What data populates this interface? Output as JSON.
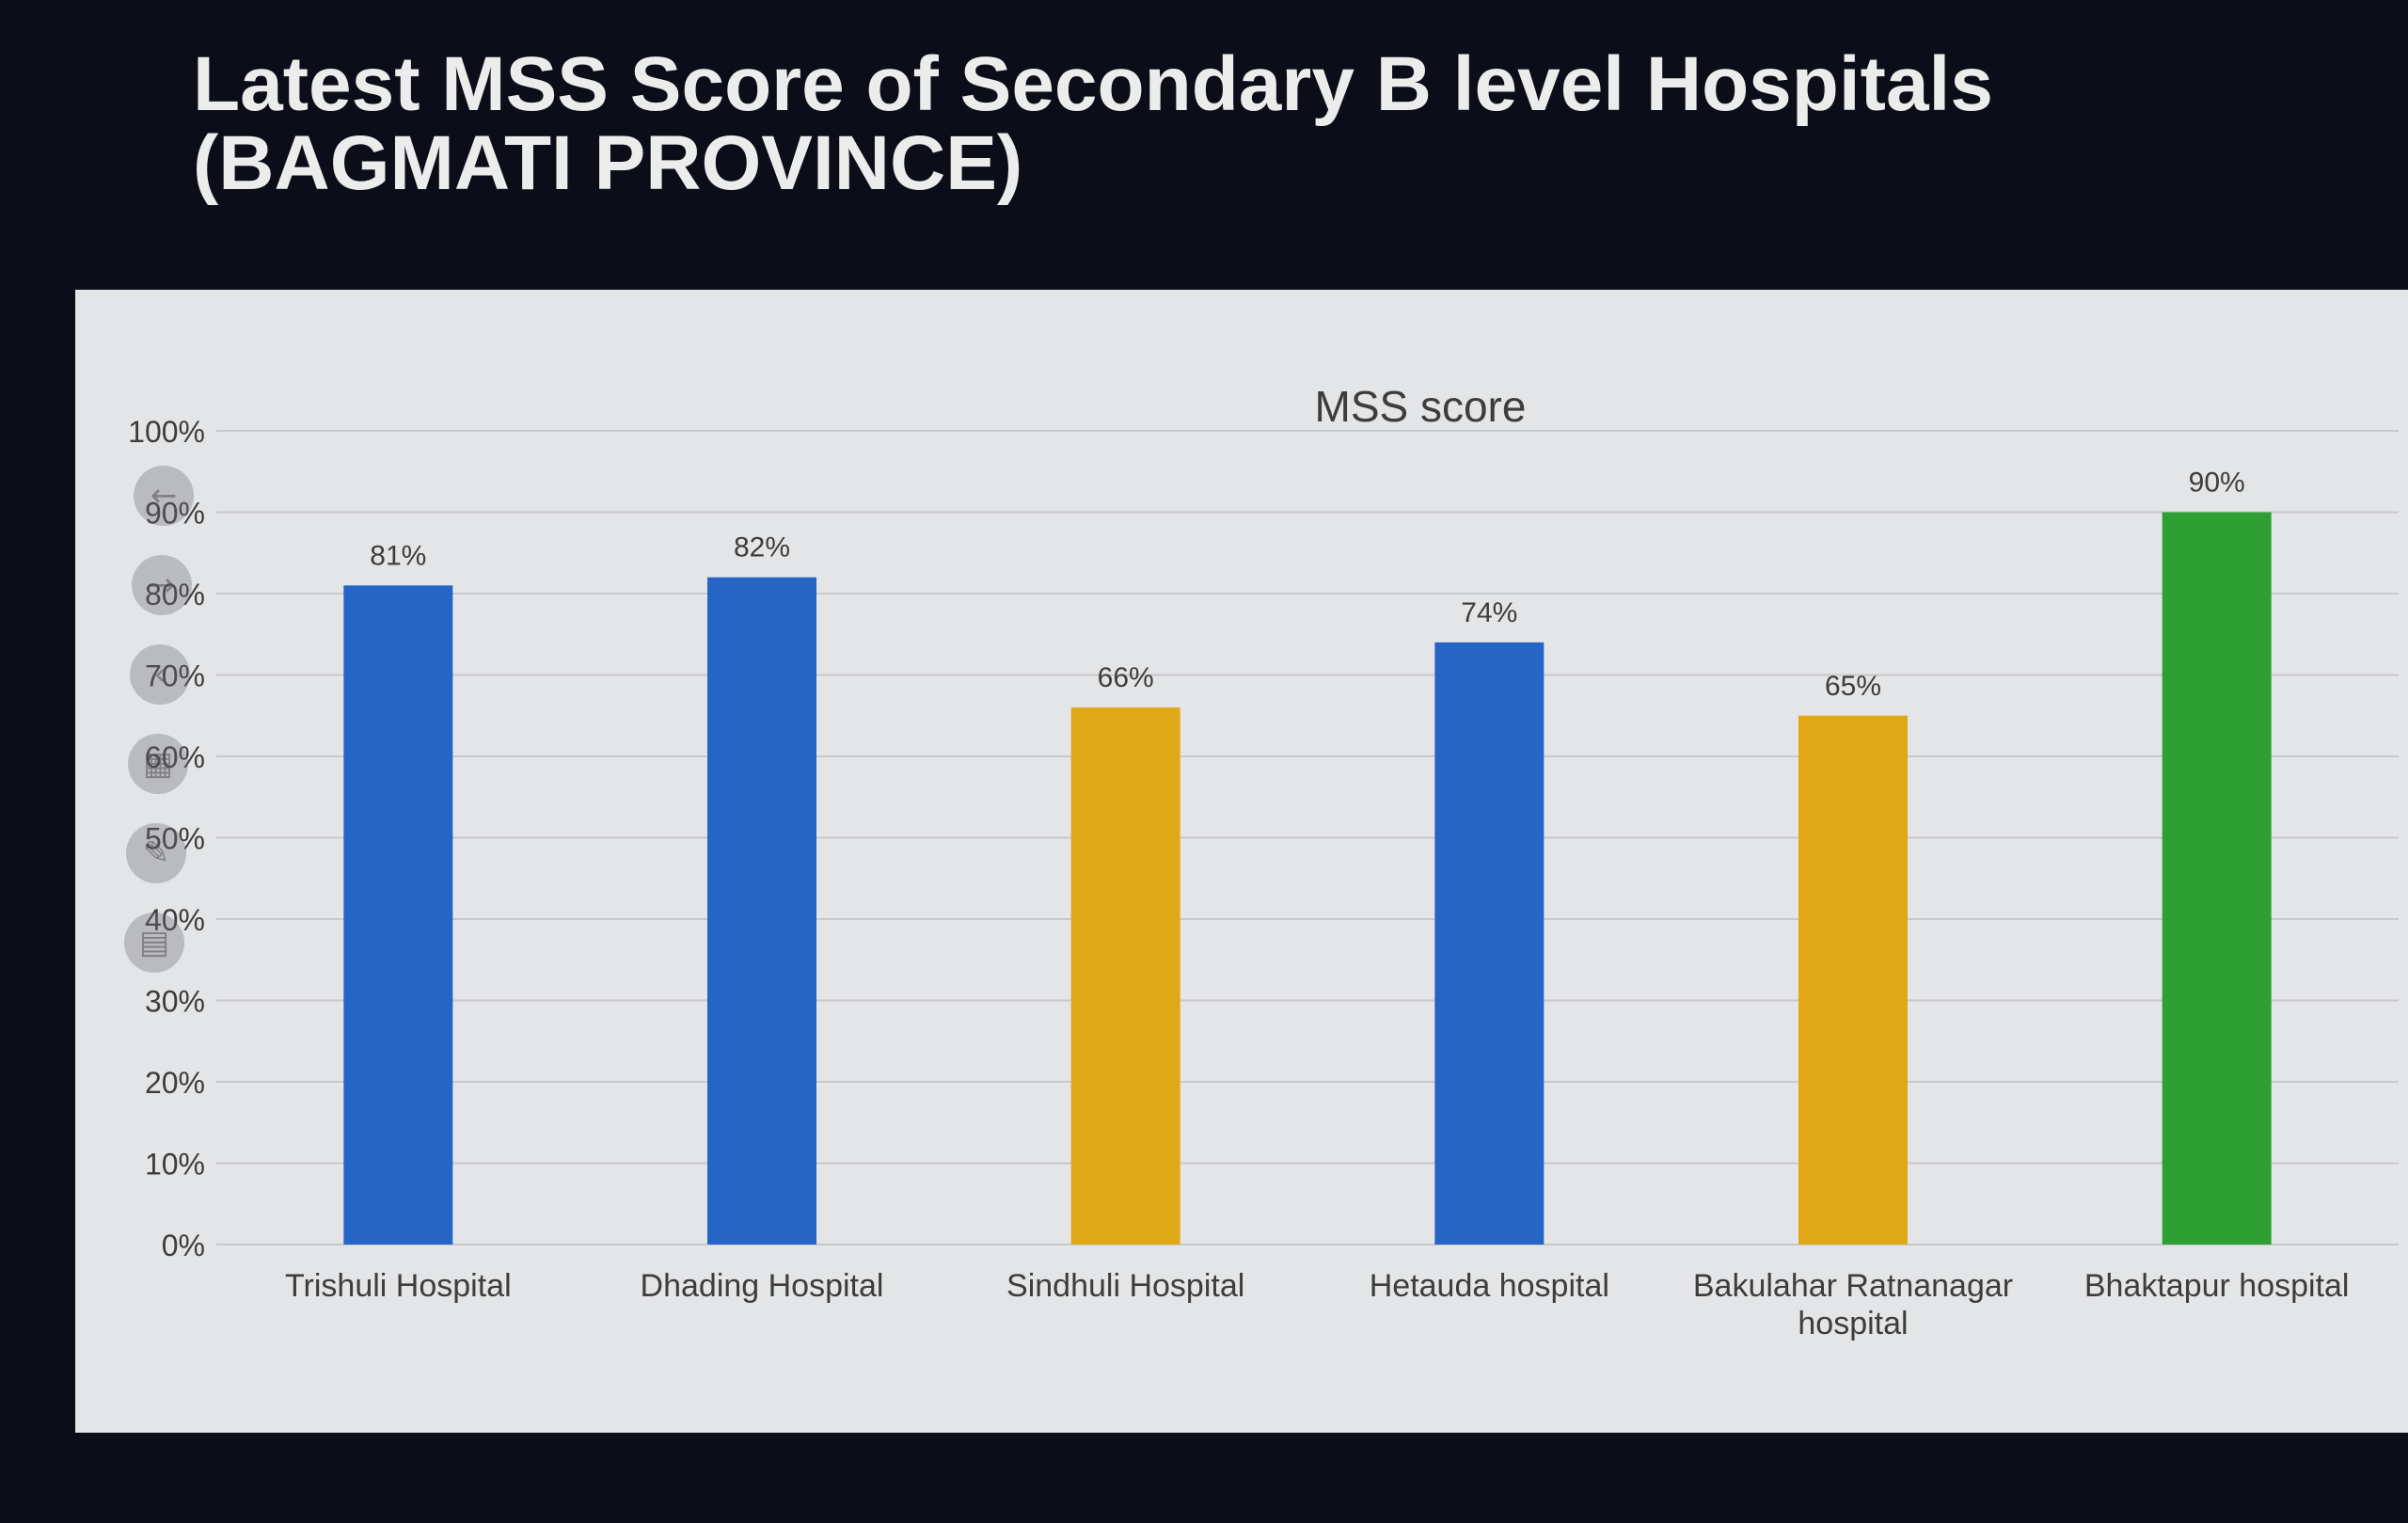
{
  "slide": {
    "title": "Latest MSS Score of Secondary B level Hospitals (BAGMATI PROVINCE)"
  },
  "colors": {
    "background": "#0b0d18",
    "panel": "#e4e5e6",
    "gridline": "#c7c8ca",
    "blue": "#2465c6",
    "yellow": "#e0a817",
    "green": "#2ea033",
    "text": "#3d3d3d"
  },
  "slide_controls": [
    {
      "icon": "back-arrow-icon"
    },
    {
      "icon": "forward-arrow-icon"
    },
    {
      "icon": "back-chevron-icon"
    },
    {
      "icon": "grid-view-icon"
    },
    {
      "icon": "pen-icon"
    },
    {
      "icon": "chat-icon"
    }
  ],
  "chart_data": {
    "type": "bar",
    "title": "MSS score",
    "xlabel": "",
    "ylabel": "",
    "ylim": [
      0,
      100
    ],
    "y_ticks": [
      "0%",
      "10%",
      "20%",
      "30%",
      "40%",
      "50%",
      "60%",
      "70%",
      "80%",
      "90%",
      "100%"
    ],
    "grid": true,
    "legend": "none",
    "categories": [
      "Trishuli Hospital",
      "Dhading Hospital",
      "Sindhuli Hospital",
      "Hetauda hospital",
      "Bakulahar Ratnanagar hospital",
      "Bhaktapur hospital"
    ],
    "values": [
      81,
      82,
      66,
      74,
      65,
      90
    ],
    "value_labels": [
      "81%",
      "82%",
      "66%",
      "74%",
      "65%",
      "90%"
    ],
    "bar_colors": [
      "#2465c6",
      "#2465c6",
      "#e0a817",
      "#2465c6",
      "#e0a817",
      "#2ea033"
    ]
  }
}
